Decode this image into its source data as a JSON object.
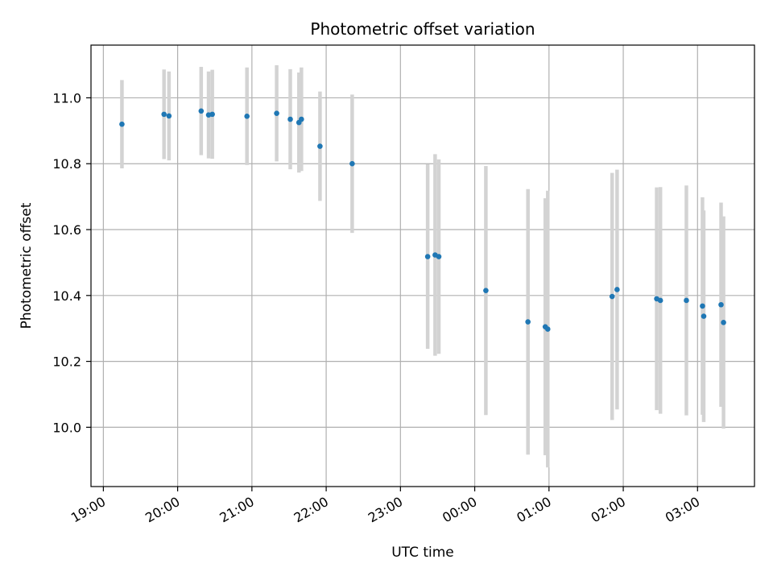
{
  "chart_data": {
    "type": "scatter",
    "title": "Photometric offset variation",
    "xlabel": "UTC time",
    "ylabel": "Photometric offset",
    "x_ticks": [
      "19:00",
      "20:00",
      "21:00",
      "22:00",
      "23:00",
      "00:00",
      "01:00",
      "02:00",
      "03:00"
    ],
    "y_ticks": [
      "10.0",
      "10.2",
      "10.4",
      "10.6",
      "10.8",
      "11.0"
    ],
    "xlim": [
      "18:50",
      "03:46"
    ],
    "ylim": [
      9.82,
      11.16
    ],
    "grid": true,
    "colors": {
      "point": "#1f77b4",
      "errorbar": "#d3d3d3",
      "grid": "#b0b0b0"
    },
    "points": [
      {
        "t": "19:15",
        "y": 10.92,
        "err": 0.134
      },
      {
        "t": "19:49",
        "y": 10.95,
        "err": 0.136
      },
      {
        "t": "19:53",
        "y": 10.945,
        "err": 0.135
      },
      {
        "t": "20:19",
        "y": 10.96,
        "err": 0.134
      },
      {
        "t": "20:25",
        "y": 10.948,
        "err": 0.132
      },
      {
        "t": "20:28",
        "y": 10.95,
        "err": 0.135
      },
      {
        "t": "20:56",
        "y": 10.944,
        "err": 0.148
      },
      {
        "t": "21:20",
        "y": 10.953,
        "err": 0.146
      },
      {
        "t": "21:31",
        "y": 10.935,
        "err": 0.152
      },
      {
        "t": "21:38",
        "y": 10.925,
        "err": 0.152
      },
      {
        "t": "21:40",
        "y": 10.935,
        "err": 0.157
      },
      {
        "t": "21:55",
        "y": 10.853,
        "err": 0.166
      },
      {
        "t": "22:21",
        "y": 10.8,
        "err": 0.21
      },
      {
        "t": "23:22",
        "y": 10.518,
        "err": 0.28
      },
      {
        "t": "23:28",
        "y": 10.523,
        "err": 0.306
      },
      {
        "t": "23:31",
        "y": 10.518,
        "err": 0.295
      },
      {
        "t": "00:09",
        "y": 10.415,
        "err": 0.378
      },
      {
        "t": "00:43",
        "y": 10.32,
        "err": 0.403
      },
      {
        "t": "00:57",
        "y": 10.305,
        "err": 0.39
      },
      {
        "t": "00:59",
        "y": 10.298,
        "err": 0.42
      },
      {
        "t": "01:51",
        "y": 10.397,
        "err": 0.375
      },
      {
        "t": "01:55",
        "y": 10.418,
        "err": 0.364
      },
      {
        "t": "02:27",
        "y": 10.39,
        "err": 0.338
      },
      {
        "t": "02:30",
        "y": 10.385,
        "err": 0.344
      },
      {
        "t": "02:51",
        "y": 10.385,
        "err": 0.349
      },
      {
        "t": "03:04",
        "y": 10.368,
        "err": 0.33
      },
      {
        "t": "03:05",
        "y": 10.337,
        "err": 0.321
      },
      {
        "t": "03:19",
        "y": 10.372,
        "err": 0.31
      },
      {
        "t": "03:21",
        "y": 10.318,
        "err": 0.322
      }
    ]
  }
}
